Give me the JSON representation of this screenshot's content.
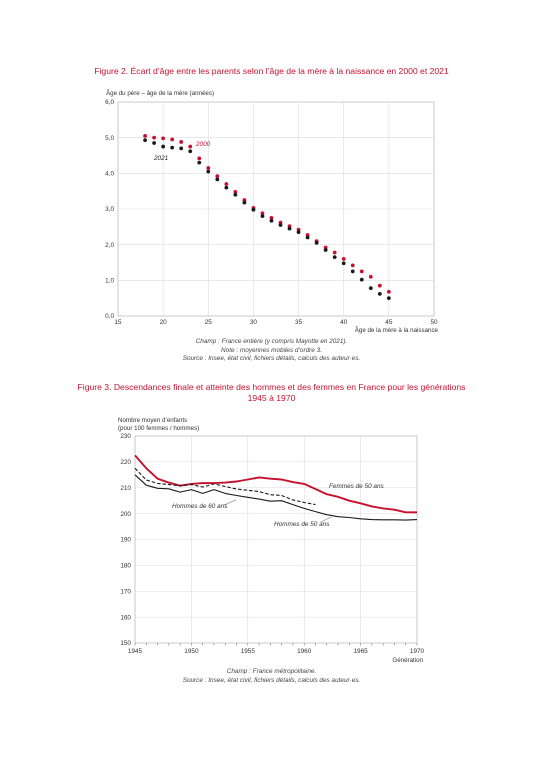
{
  "figure2": {
    "title": "Figure 2. Écart d’âge entre les parents selon l’âge de la mère à la naissance en 2000 et 2021",
    "notes": [
      "Champ : France entière (y compris Mayotte en 2021).",
      "Note : moyennes mobiles d’ordre 3.",
      "Source : Insee, état civil, fichiers détails, calculs des auteur·es."
    ]
  },
  "figure3": {
    "title_line1": "Figure 3. Descendances finale et atteinte des hommes et des femmes en France pour les générations",
    "title_line2": "1945 à 1970",
    "notes": [
      "Champ : France métropolitaine.",
      "Source : Insee, état civil, fichiers détails, calculs des auteur·es."
    ]
  },
  "colors": {
    "red": "#c8102e",
    "dark": "#1a1a1a"
  },
  "chart_data": [
    {
      "type": "scatter",
      "title": "",
      "ylabel": "Âge du père – âge de la mère (années)",
      "xlabel": "Âge de la mère à la naissance",
      "xlim": [
        15,
        50
      ],
      "ylim": [
        0,
        6
      ],
      "xticks": [
        15,
        20,
        25,
        30,
        35,
        40,
        45,
        50
      ],
      "yticks": [
        0,
        1,
        2,
        3,
        4,
        5,
        6
      ],
      "ytick_labels": [
        "0,0",
        "1,0",
        "2,0",
        "3,0",
        "4,0",
        "5,0",
        "6,0"
      ],
      "grid": true,
      "x": [
        18,
        19,
        20,
        21,
        22,
        23,
        24,
        25,
        26,
        27,
        28,
        29,
        30,
        31,
        32,
        33,
        34,
        35,
        36,
        37,
        38,
        39,
        40,
        41,
        42,
        43,
        44,
        45
      ],
      "series": [
        {
          "name": "2000",
          "color": "#c8102e",
          "values": [
            5.05,
            5.0,
            4.98,
            4.95,
            4.88,
            4.75,
            4.42,
            4.15,
            3.92,
            3.7,
            3.48,
            3.25,
            3.03,
            2.88,
            2.75,
            2.62,
            2.52,
            2.42,
            2.27,
            2.1,
            1.92,
            1.78,
            1.6,
            1.42,
            1.25,
            1.1,
            0.85,
            0.68
          ]
        },
        {
          "name": "2021",
          "color": "#1a1a1a",
          "values": [
            4.93,
            4.85,
            4.75,
            4.72,
            4.7,
            4.62,
            4.3,
            4.05,
            3.83,
            3.6,
            3.4,
            3.18,
            2.98,
            2.8,
            2.67,
            2.55,
            2.45,
            2.35,
            2.2,
            2.05,
            1.85,
            1.65,
            1.48,
            1.25,
            1.02,
            0.78,
            0.62,
            0.5
          ]
        }
      ]
    },
    {
      "type": "line",
      "title": "",
      "ylabel": "Nombre moyen d’enfants",
      "ylabel2": "(pour 100 femmes / hommes)",
      "xlabel": "Génération",
      "xlim": [
        1945,
        1970
      ],
      "ylim": [
        150,
        230
      ],
      "xticks": [
        1945,
        1950,
        1955,
        1960,
        1965,
        1970
      ],
      "yticks": [
        150,
        160,
        170,
        180,
        190,
        200,
        210,
        220,
        230
      ],
      "grid": true,
      "series": [
        {
          "name": "Femmes de 50 ans",
          "color": "#c8102e",
          "style": "solid",
          "x": [
            1945,
            1946,
            1947,
            1948,
            1949,
            1950,
            1951,
            1952,
            1953,
            1954,
            1955,
            1956,
            1957,
            1958,
            1959,
            1960,
            1961,
            1962,
            1963,
            1964,
            1965,
            1966,
            1967,
            1968,
            1969,
            1970
          ],
          "values": [
            222.5,
            217.5,
            213.5,
            212,
            210.8,
            211.5,
            211.8,
            211.8,
            212,
            212.4,
            213.2,
            214,
            213.5,
            213.2,
            212.2,
            211.5,
            209.5,
            207.5,
            206.5,
            205,
            204,
            202.8,
            202,
            201.5,
            200.5,
            200.5
          ]
        },
        {
          "name": "Hommes de 60 ans",
          "color": "#1a1a1a",
          "style": "dashed",
          "x": [
            1945,
            1946,
            1947,
            1948,
            1949,
            1950,
            1951,
            1952,
            1953,
            1954,
            1955,
            1956,
            1957,
            1958,
            1959,
            1960,
            1961
          ],
          "values": [
            217.5,
            213,
            211.7,
            211.2,
            210.8,
            211.2,
            210.3,
            211.5,
            210.5,
            209.5,
            209,
            208.5,
            207.3,
            207,
            205.3,
            204.3,
            203.5
          ]
        },
        {
          "name": "Hommes de 50 ans",
          "color": "#1a1a1a",
          "style": "solid",
          "x": [
            1945,
            1946,
            1947,
            1948,
            1949,
            1950,
            1951,
            1952,
            1953,
            1954,
            1955,
            1956,
            1957,
            1958,
            1959,
            1960,
            1961,
            1962,
            1963,
            1964,
            1965,
            1966,
            1967,
            1968,
            1969,
            1970
          ],
          "values": [
            215,
            211,
            209.8,
            209.6,
            208.3,
            209.3,
            207.8,
            209.3,
            207.8,
            207,
            206.3,
            205.6,
            204.8,
            205,
            203.5,
            202,
            200.8,
            199.6,
            198.8,
            198.5,
            198,
            197.7,
            197.6,
            197.6,
            197.5,
            197.7
          ]
        }
      ]
    }
  ]
}
